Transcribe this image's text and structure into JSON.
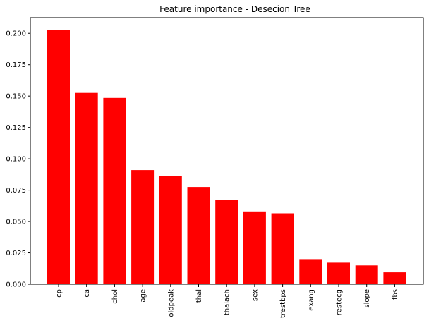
{
  "chart_data": {
    "type": "bar",
    "title": "Feature importance - Desecion Tree",
    "xlabel": "",
    "ylabel": "",
    "categories": [
      "cp",
      "ca",
      "chol",
      "age",
      "oldpeak",
      "thal",
      "thalach",
      "sex",
      "trestbps",
      "exang",
      "restecg",
      "slope",
      "fbs"
    ],
    "values": [
      0.2025,
      0.1525,
      0.1485,
      0.091,
      0.086,
      0.0775,
      0.067,
      0.058,
      0.0565,
      0.02,
      0.0172,
      0.015,
      0.0095
    ],
    "ylim": [
      0,
      0.2125
    ],
    "yticks": [
      "0.000",
      "0.025",
      "0.050",
      "0.075",
      "0.100",
      "0.125",
      "0.150",
      "0.175",
      "0.200"
    ],
    "grid": false,
    "bar_color": "#ff0000"
  }
}
